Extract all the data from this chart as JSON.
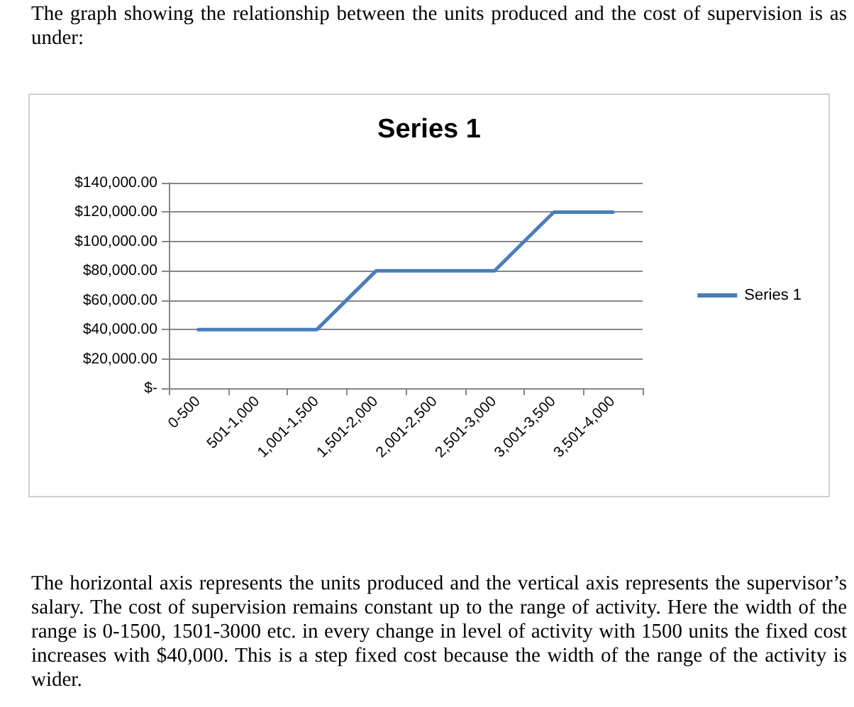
{
  "chart_data": {
    "type": "line",
    "title": "Series 1",
    "categories": [
      "0-500",
      "501-1,000",
      "1,001-1,500",
      "1,501-2,000",
      "2,001-2,500",
      "2,501-3,000",
      "3,001-3,500",
      "3,501-4,000"
    ],
    "series": [
      {
        "name": "Series 1",
        "color": "#4a7ebb",
        "values": [
          40000,
          40000,
          40000,
          80000,
          80000,
          80000,
          120000,
          120000
        ]
      }
    ],
    "ylim": [
      0,
      140000
    ],
    "yticks": [
      {
        "value": 0,
        "label": "$-"
      },
      {
        "value": 20000,
        "label": "$20,000.00"
      },
      {
        "value": 40000,
        "label": "$40,000.00"
      },
      {
        "value": 60000,
        "label": "$60,000.00"
      },
      {
        "value": 80000,
        "label": "$80,000.00"
      },
      {
        "value": 100000,
        "label": "$100,000.00"
      },
      {
        "value": 120000,
        "label": "$120,000.00"
      },
      {
        "value": 140000,
        "label": "$140,000.00"
      }
    ],
    "grid": "y",
    "legend": "right",
    "marker": "none",
    "line_style": "solid",
    "annotations": [
      "The graph showing the relationship between the units produced and the cost of supervision is as under:",
      "The horizontal axis represents the units produced and the vertical axis represents the supervisor’s salary. The cost of supervision remains constant up to the range of activity. Here the width of the range is 0-1500, 1501-3000 etc. in every change in level of activity with 1500 units the fixed cost increases with $40,000. This is a step fixed cost because the width of the range of the activity is wider."
    ]
  }
}
